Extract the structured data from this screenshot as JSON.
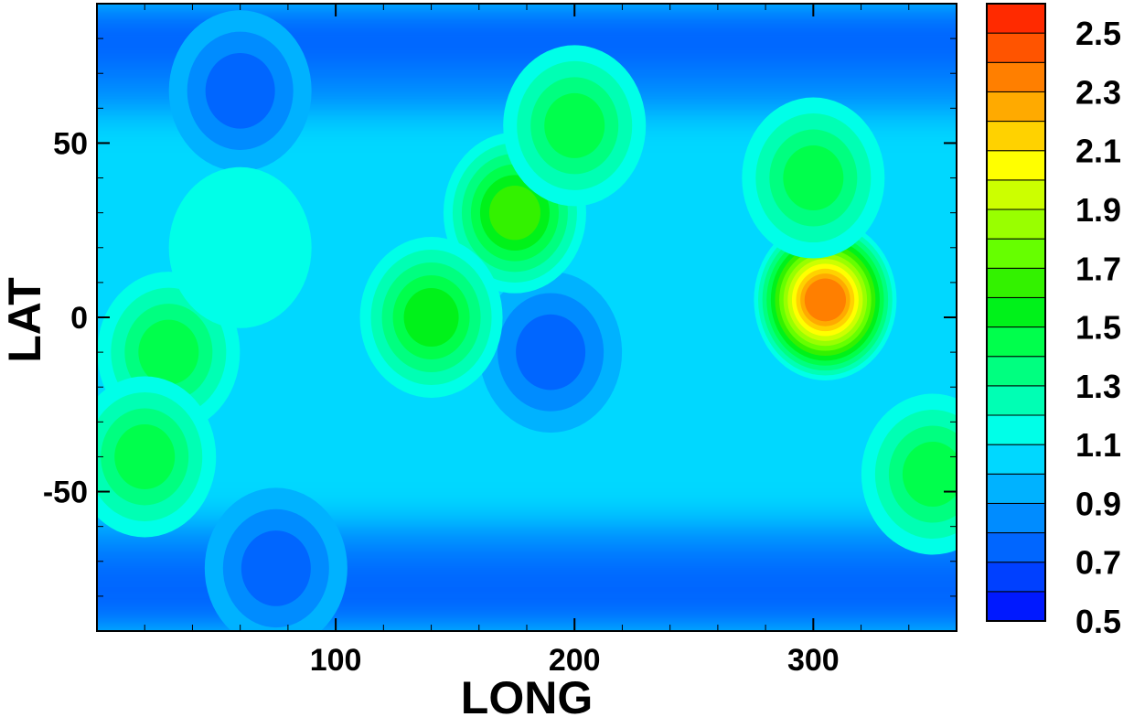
{
  "chart_data": {
    "type": "heatmap",
    "xlabel": "LONG",
    "ylabel": "LAT",
    "xlim": [
      0,
      360
    ],
    "ylim": [
      -90,
      90
    ],
    "x_ticks": [
      100,
      200,
      300
    ],
    "y_ticks": [
      50,
      0,
      -50
    ],
    "x_tick_labels": [
      "100",
      "200",
      "300"
    ],
    "y_tick_labels": [
      "50",
      "0",
      "-50"
    ],
    "colorbar": {
      "levels": [
        0.5,
        0.6,
        0.7,
        0.8,
        0.9,
        1.0,
        1.1,
        1.2,
        1.3,
        1.4,
        1.5,
        1.6,
        1.7,
        1.8,
        1.9,
        2.0,
        2.1,
        2.2,
        2.3,
        2.4,
        2.5,
        2.6
      ],
      "tick_values": [
        2.5,
        2.3,
        2.1,
        1.9,
        1.7,
        1.5,
        1.3,
        1.1,
        0.9,
        0.7,
        0.5
      ],
      "tick_labels": [
        "2.5",
        "2.3",
        "2.1",
        "1.9",
        "1.7",
        "1.5",
        "1.3",
        "1.1",
        "0.9",
        "0.7",
        "0.5"
      ],
      "colors": [
        "#0019ff",
        "#0040ff",
        "#0066ff",
        "#008cff",
        "#00b2ff",
        "#00d8ff",
        "#00ffe8",
        "#00ffb4",
        "#00ff80",
        "#00ff4c",
        "#00f21a",
        "#33f200",
        "#66ff00",
        "#99ff00",
        "#ccff00",
        "#ffff00",
        "#ffd200",
        "#ffaa00",
        "#ff7f00",
        "#ff5400",
        "#ff2a00"
      ]
    },
    "features": [
      {
        "long": 60,
        "lat": 65,
        "value": 0.65
      },
      {
        "long": 75,
        "lat": -72,
        "value": 0.65
      },
      {
        "long": 190,
        "lat": -10,
        "value": 0.7
      },
      {
        "long": 305,
        "lat": 5,
        "value": 2.3
      },
      {
        "long": 175,
        "lat": 30,
        "value": 1.55
      },
      {
        "long": 140,
        "lat": 0,
        "value": 1.5
      },
      {
        "long": 30,
        "lat": -10,
        "value": 1.4
      },
      {
        "long": 20,
        "lat": -40,
        "value": 1.35
      },
      {
        "long": 350,
        "lat": -45,
        "value": 1.4
      },
      {
        "long": 300,
        "lat": 40,
        "value": 1.4
      },
      {
        "long": 200,
        "lat": 55,
        "value": 1.45
      },
      {
        "long": 60,
        "lat": 20,
        "value": 1.1
      }
    ]
  }
}
